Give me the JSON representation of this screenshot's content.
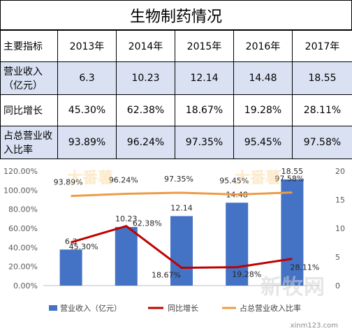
{
  "table": {
    "title": "生物制药情况",
    "header": [
      "主要指标",
      "2013年",
      "2014年",
      "2015年",
      "2016年",
      "2017年"
    ],
    "rows": [
      {
        "label": "营业收入\n（亿元）",
        "values": [
          "6.3",
          "10.23",
          "12.14",
          "14.48",
          "18.55"
        ]
      },
      {
        "label": "同比增长",
        "values": [
          "45.30%",
          "62.38%",
          "18.67%",
          "19.28%",
          "28.11%"
        ]
      },
      {
        "label": "占总营业收\n入比率",
        "values": [
          "93.89%",
          "96.24%",
          "97.35%",
          "95.45%",
          "97.58%"
        ]
      }
    ]
  },
  "watermarks": {
    "brand": "大番薯",
    "site_logo": "新牧网",
    "site_url": "xinm123.com"
  },
  "colors": {
    "bar": "#4472c4",
    "growth": "#c00000",
    "share": "#ed9b45",
    "header_fill": "#d9e1f2",
    "grid": "#d9d9d9"
  },
  "chart_data": {
    "type": "bar",
    "categories": [
      "2013",
      "2014",
      "2015",
      "2016",
      "2017"
    ],
    "series": [
      {
        "name": "营业收入（亿元）",
        "type": "bar",
        "axis": "right",
        "values": [
          6.3,
          10.23,
          12.14,
          14.48,
          18.55
        ],
        "labels": [
          "6.3",
          "10.23",
          "12.14",
          "14.48",
          "18.55"
        ]
      },
      {
        "name": "同比增长",
        "type": "line",
        "axis": "left",
        "values": [
          45.3,
          62.38,
          18.67,
          19.28,
          28.11
        ],
        "labels": [
          "45.30%",
          "62.38%",
          "18.67%",
          "19.28%",
          "28.11%"
        ]
      },
      {
        "name": "占总营业收入比率",
        "type": "line",
        "axis": "left",
        "values": [
          93.89,
          96.24,
          97.35,
          95.45,
          97.58
        ],
        "labels": [
          "93.89%",
          "96.24%",
          "97.35%",
          "95.45%",
          "97.58%"
        ]
      }
    ],
    "left_axis": {
      "ylim": [
        0,
        120
      ],
      "ticks": [
        "0.00%",
        "20.00%",
        "40.00%",
        "60.00%",
        "80.00%",
        "100.00%",
        "120.00%"
      ]
    },
    "right_axis": {
      "ylim": [
        0,
        20
      ],
      "ticks": [
        "0",
        "5",
        "10",
        "15",
        "20"
      ]
    },
    "legend": "bottom",
    "grid": false
  }
}
